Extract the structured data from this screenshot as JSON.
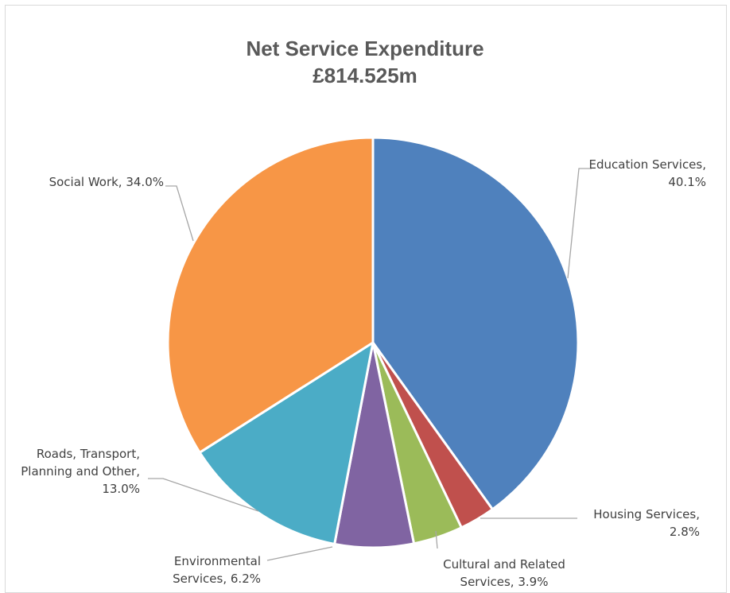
{
  "chart_data": {
    "type": "pie",
    "title": "Net Service Expenditure",
    "subtitle": "£814.525m",
    "slices": [
      {
        "name": "Education Services",
        "value": 40.1,
        "label_lines": [
          "Education Services,",
          "40.1%"
        ],
        "color": "#4F81BD"
      },
      {
        "name": "Housing Services",
        "value": 2.8,
        "label_lines": [
          "Housing Services,",
          "2.8%"
        ],
        "color": "#C0504D"
      },
      {
        "name": "Cultural and Related Services",
        "value": 3.9,
        "label_lines": [
          "Cultural and Related",
          "Services, 3.9%"
        ],
        "color": "#9BBB59"
      },
      {
        "name": "Environmental Services",
        "value": 6.2,
        "label_lines": [
          "Environmental",
          "Services, 6.2%"
        ],
        "color": "#8064A2"
      },
      {
        "name": "Roads, Transport, Planning and Other",
        "value": 13.0,
        "label_lines": [
          "Roads, Transport,",
          "Planning and Other,",
          "13.0%"
        ],
        "color": "#4BACC6"
      },
      {
        "name": "Social Work",
        "value": 34.0,
        "label_lines": [
          "Social Work, 34.0%"
        ],
        "color": "#F79646"
      }
    ],
    "legend": "none",
    "start_angle_deg": 0,
    "direction": "clockwise"
  }
}
